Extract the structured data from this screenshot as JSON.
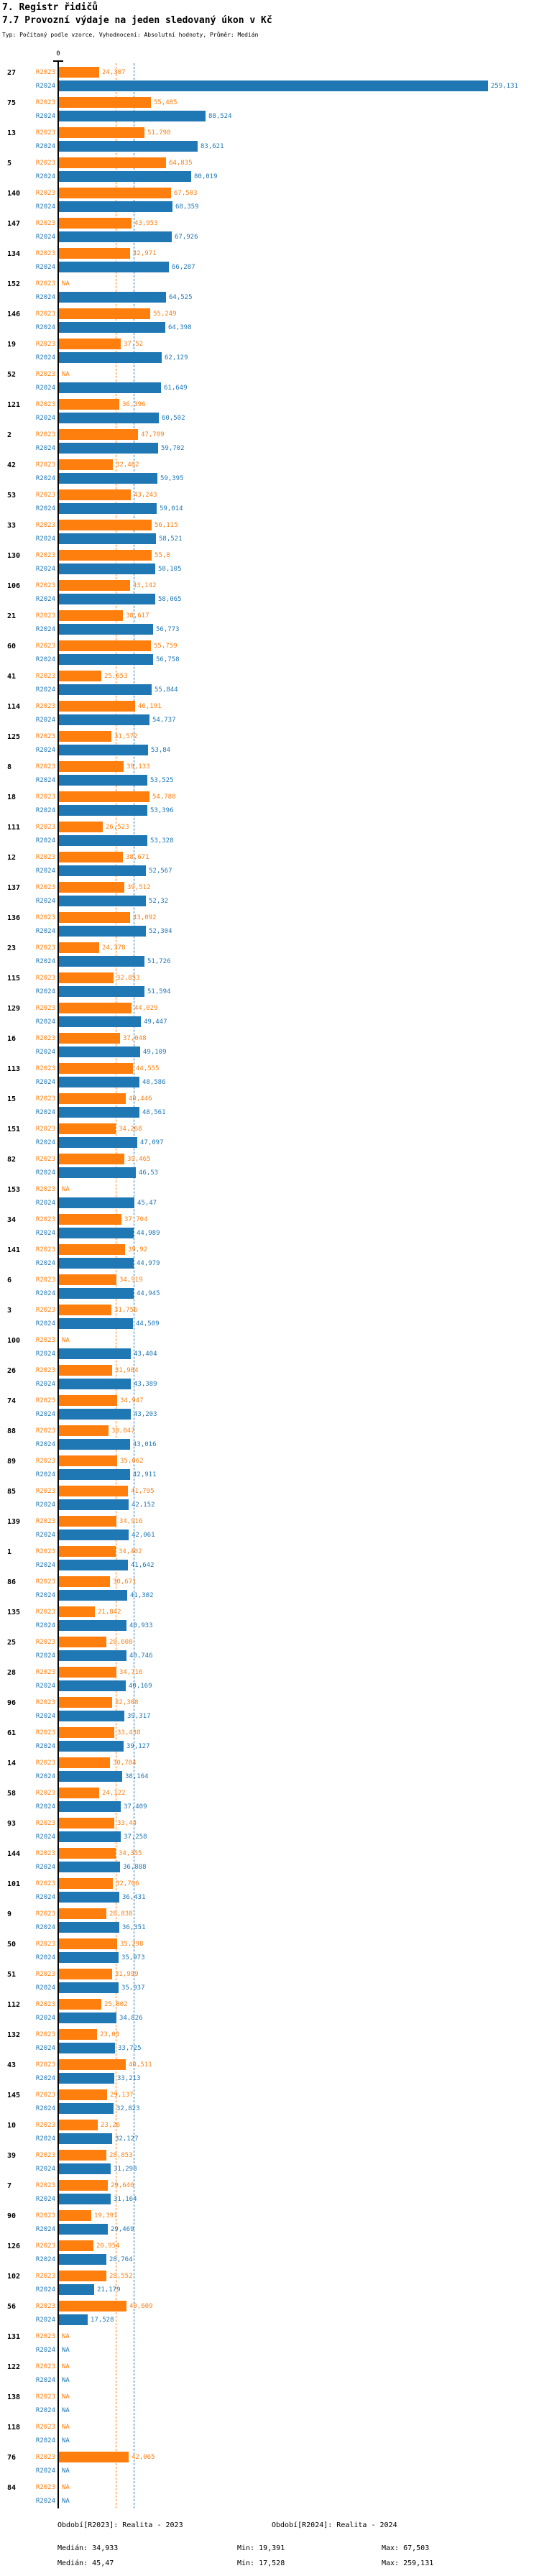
{
  "header": {
    "title": "7. Registr řidičů",
    "subtitle": "7.7 Provozní výdaje na jeden sledovaný úkon v Kč",
    "meta": "Typ: Počítaný podle vzorce, Vyhodnocení: Absolutní hodnoty, Průměr: Medián"
  },
  "axis": {
    "zero_label": "0"
  },
  "colors": {
    "r2023": "#ff7f0e",
    "r2024": "#1f77b4"
  },
  "legend": {
    "r2023": {
      "label": "Období[R2023]: Realita - 2023",
      "median": "Medián: 34,933",
      "min": "Min: 19,391",
      "max": "Max: 67,503"
    },
    "r2024": {
      "label": "Období[R2024]: Realita - 2024",
      "median": "Medián: 45,47",
      "min": "Min: 17,528",
      "max": "Max: 259,131"
    }
  },
  "chart_data": {
    "type": "bar",
    "orientation": "horizontal",
    "unit": "Kč",
    "title": "7.7 Provozní výdaje na jeden sledovaný úkon v Kč",
    "series_names": [
      "R2023",
      "R2024"
    ],
    "legend_position": "bottom",
    "x_axis": {
      "zero_label": "0",
      "grid": false
    },
    "medians": {
      "R2023": 34.933,
      "R2024": 45.47
    },
    "mins": {
      "R2023": 19.391,
      "R2024": 17.528
    },
    "maxs": {
      "R2023": 67.503,
      "R2024": 259.131
    },
    "rows": [
      [
        "27",
        "24,307",
        "259,131"
      ],
      [
        "75",
        "55,485",
        "88,524"
      ],
      [
        "13",
        "51,798",
        "83,621"
      ],
      [
        "5",
        "64,835",
        "80,019"
      ],
      [
        "140",
        "67,503",
        "68,359"
      ],
      [
        "147",
        "43,953",
        "67,926"
      ],
      [
        "134",
        "42,971",
        "66,287"
      ],
      [
        "152",
        "NA",
        "64,525"
      ],
      [
        "146",
        "55,249",
        "64,398"
      ],
      [
        "19",
        "37,52",
        "62,129"
      ],
      [
        "52",
        "NA",
        "61,649"
      ],
      [
        "121",
        "36,396",
        "60,502"
      ],
      [
        "2",
        "47,709",
        "59,702"
      ],
      [
        "42",
        "32,462",
        "59,395"
      ],
      [
        "53",
        "43,243",
        "59,014"
      ],
      [
        "33",
        "56,115",
        "58,521"
      ],
      [
        "130",
        "55,8",
        "58,105"
      ],
      [
        "106",
        "43,142",
        "58,065"
      ],
      [
        "21",
        "38,617",
        "56,773"
      ],
      [
        "60",
        "55,759",
        "56,758"
      ],
      [
        "41",
        "25,653",
        "55,844"
      ],
      [
        "114",
        "46,191",
        "54,737"
      ],
      [
        "125",
        "31,572",
        "53,84"
      ],
      [
        "8",
        "39,133",
        "53,525"
      ],
      [
        "18",
        "54,788",
        "53,396"
      ],
      [
        "111",
        "26,523",
        "53,328"
      ],
      [
        "12",
        "38,671",
        "52,567"
      ],
      [
        "137",
        "39,512",
        "52,32"
      ],
      [
        "136",
        "43,092",
        "52,304"
      ],
      [
        "23",
        "24,378",
        "51,726"
      ],
      [
        "115",
        "32,853",
        "51,594"
      ],
      [
        "129",
        "44,029",
        "49,447"
      ],
      [
        "16",
        "37,048",
        "49,109"
      ],
      [
        "113",
        "44,555",
        "48,586"
      ],
      [
        "15",
        "40,446",
        "48,561"
      ],
      [
        "151",
        "34,268",
        "47,097"
      ],
      [
        "82",
        "39,465",
        "46,53"
      ],
      [
        "153",
        "NA",
        "45,47"
      ],
      [
        "34",
        "37,704",
        "44,989"
      ],
      [
        "141",
        "39,92",
        "44,979"
      ],
      [
        "6",
        "34,919",
        "44,945"
      ],
      [
        "3",
        "31,756",
        "44,509"
      ],
      [
        "100",
        "NA",
        "43,404"
      ],
      [
        "26",
        "31,984",
        "43,389"
      ],
      [
        "74",
        "34,947",
        "43,203"
      ],
      [
        "88",
        "30,047",
        "43,016"
      ],
      [
        "89",
        "35,062",
        "42,911"
      ],
      [
        "85",
        "41,795",
        "42,152"
      ],
      [
        "139",
        "34,916",
        "42,061"
      ],
      [
        "1",
        "34,402",
        "41,642"
      ],
      [
        "86",
        "30,671",
        "41,302"
      ],
      [
        "135",
        "21,842",
        "40,933"
      ],
      [
        "25",
        "28,608",
        "40,746"
      ],
      [
        "28",
        "34,716",
        "40,169"
      ],
      [
        "96",
        "32,308",
        "39,317"
      ],
      [
        "61",
        "33,438",
        "39,127"
      ],
      [
        "14",
        "30,784",
        "38,164"
      ],
      [
        "58",
        "24,122",
        "37,409"
      ],
      [
        "93",
        "33,44",
        "37,258"
      ],
      [
        "144",
        "34,355",
        "36,888"
      ],
      [
        "101",
        "32,706",
        "36,431"
      ],
      [
        "9",
        "28,838",
        "36,351"
      ],
      [
        "50",
        "35,298",
        "35,973"
      ],
      [
        "51",
        "31,999",
        "35,937"
      ],
      [
        "112",
        "25,802",
        "34,826"
      ],
      [
        "132",
        "23,03",
        "33,725"
      ],
      [
        "43",
        "40,511",
        "33,213"
      ],
      [
        "145",
        "29,137",
        "32,823"
      ],
      [
        "10",
        "23,26",
        "32,127"
      ],
      [
        "39",
        "28,853",
        "31,298"
      ],
      [
        "7",
        "29,646",
        "31,164"
      ],
      [
        "90",
        "19,391",
        "29,469"
      ],
      [
        "126",
        "20,954",
        "28,764"
      ],
      [
        "102",
        "28,552",
        "21,179"
      ],
      [
        "56",
        "40,609",
        "17,528"
      ],
      [
        "131",
        "NA",
        "NA"
      ],
      [
        "122",
        "NA",
        "NA"
      ],
      [
        "138",
        "NA",
        "NA"
      ],
      [
        "118",
        "NA",
        "NA"
      ],
      [
        "76",
        "42,065",
        "NA"
      ],
      [
        "84",
        "NA",
        "NA"
      ]
    ]
  }
}
